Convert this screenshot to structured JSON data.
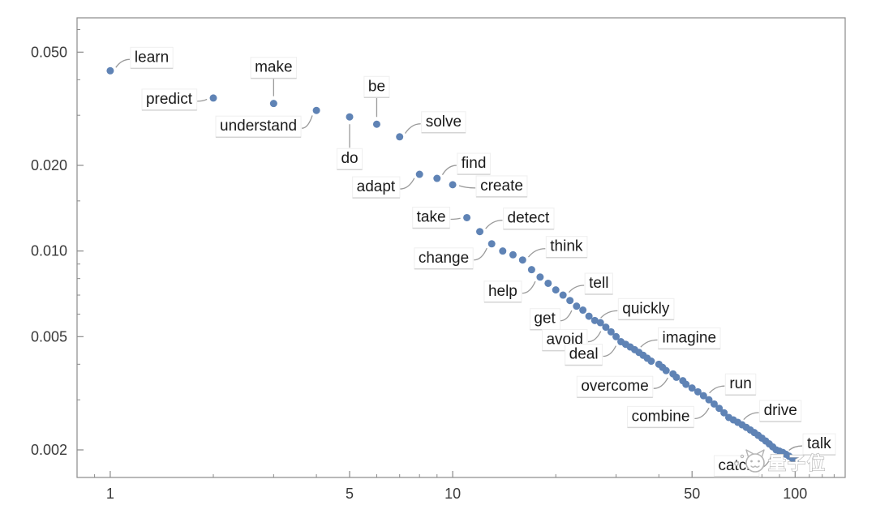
{
  "figure": {
    "background": "#ffffff",
    "frame_color": "#8a8a8a",
    "tick_color": "#8a8a8a",
    "tick_label_color": "#3a3a3a",
    "label_text_color": "#1a1a1a",
    "leader_color": "#9a9a9a",
    "label_underline_color": "#d4d4d4"
  },
  "watermark": {
    "text": "量子位",
    "icon": "cat-face-icon",
    "color": "#b5b5b5"
  },
  "chart_data": {
    "type": "scatter",
    "title": "",
    "xlabel": "",
    "ylabel": "",
    "x_scale": "log",
    "y_scale": "log",
    "xlim": [
      0.8,
      140
    ],
    "ylim": [
      0.0016,
      0.066
    ],
    "x_ticks": [
      1,
      5,
      10,
      50,
      100
    ],
    "x_tick_labels": [
      "1",
      "5",
      "10",
      "50",
      "100"
    ],
    "x_minor_ticks": [
      0.9,
      2,
      3,
      4,
      6,
      7,
      8,
      9,
      20,
      30,
      40,
      60,
      70,
      80,
      90,
      110,
      120,
      130
    ],
    "y_ticks": [
      0.05,
      0.02,
      0.01,
      0.005,
      0.002
    ],
    "y_tick_labels": [
      "0.050",
      "0.020",
      "0.010",
      "0.005",
      "0.002"
    ],
    "y_minor_ticks": [
      0.003,
      0.004,
      0.006,
      0.007,
      0.008,
      0.009,
      0.015,
      0.03,
      0.04,
      0.06
    ],
    "point_color": "#5f83b5",
    "point_radius": 4.5,
    "grid": false,
    "legend": false,
    "points": [
      [
        1,
        0.043,
        "learn"
      ],
      [
        2,
        0.0345,
        "predict"
      ],
      [
        3,
        0.033,
        "make"
      ],
      [
        4,
        0.0312,
        "understand"
      ],
      [
        5,
        0.0296,
        "do"
      ],
      [
        6,
        0.0279,
        "be"
      ],
      [
        7,
        0.0252,
        "solve"
      ],
      [
        8,
        0.0186,
        "adapt"
      ],
      [
        9,
        0.018,
        "find"
      ],
      [
        10,
        0.0171,
        "create"
      ],
      [
        11,
        0.0131,
        "take"
      ],
      [
        12,
        0.0117,
        "detect"
      ],
      [
        13,
        0.0106,
        "change"
      ],
      [
        14,
        0.01
      ],
      [
        15,
        0.0097
      ],
      [
        16,
        0.0093,
        "think"
      ],
      [
        17,
        0.0086
      ],
      [
        18,
        0.0081,
        "help"
      ],
      [
        19,
        0.0077
      ],
      [
        20,
        0.0073
      ],
      [
        21,
        0.007,
        "tell"
      ],
      [
        22,
        0.0067
      ],
      [
        23,
        0.0064,
        "get"
      ],
      [
        24,
        0.0062
      ],
      [
        25,
        0.0059
      ],
      [
        26,
        0.0057,
        "quickly"
      ],
      [
        27,
        0.0056
      ],
      [
        28,
        0.0054,
        "avoid"
      ],
      [
        29,
        0.0052
      ],
      [
        30,
        0.005
      ],
      [
        31,
        0.0048,
        "deal"
      ],
      [
        32,
        0.0047
      ],
      [
        33,
        0.0046
      ],
      [
        34,
        0.0045,
        "imagine"
      ],
      [
        35,
        0.0044
      ],
      [
        36,
        0.0043
      ],
      [
        37,
        0.0042
      ],
      [
        38,
        0.0041
      ],
      [
        40,
        0.004
      ],
      [
        41,
        0.0039
      ],
      [
        42,
        0.0038
      ],
      [
        44,
        0.0037,
        "overcome"
      ],
      [
        45,
        0.0036
      ],
      [
        47,
        0.0035
      ],
      [
        48,
        0.0034
      ],
      [
        50,
        0.0033
      ],
      [
        52,
        0.0032
      ],
      [
        54,
        0.0031,
        "run"
      ],
      [
        56,
        0.003
      ],
      [
        58,
        0.0029,
        "combine"
      ],
      [
        60,
        0.0028
      ],
      [
        62,
        0.0027
      ],
      [
        64,
        0.0026
      ],
      [
        66,
        0.00255
      ],
      [
        68,
        0.0025,
        "drive"
      ],
      [
        70,
        0.00245
      ],
      [
        72,
        0.0024
      ],
      [
        74,
        0.00235
      ],
      [
        76,
        0.0023
      ],
      [
        78,
        0.00225
      ],
      [
        80,
        0.0022
      ],
      [
        82,
        0.00215
      ],
      [
        84,
        0.0021
      ],
      [
        86,
        0.00205
      ],
      [
        88,
        0.002,
        "catch"
      ],
      [
        90,
        0.00198
      ],
      [
        92,
        0.00196,
        "talk"
      ],
      [
        94,
        0.00193
      ],
      [
        96,
        0.0019
      ],
      [
        98,
        0.00187
      ],
      [
        100,
        0.00184
      ]
    ],
    "label_layout": {
      "learn": {
        "dx": 30,
        "dy": -16,
        "anchor": "start",
        "leader": "curve"
      },
      "predict": {
        "dx": -26,
        "dy": 2,
        "anchor": "end",
        "leader": "curve"
      },
      "make": {
        "dx": 0,
        "dy": -44,
        "anchor": "middle",
        "leader": "line"
      },
      "understand": {
        "dx": -24,
        "dy": 20,
        "anchor": "end",
        "leader": "curve"
      },
      "do": {
        "dx": 0,
        "dy": 52,
        "anchor": "middle",
        "leader": "line"
      },
      "be": {
        "dx": 0,
        "dy": -46,
        "anchor": "middle",
        "leader": "line"
      },
      "solve": {
        "dx": 32,
        "dy": -18,
        "anchor": "start",
        "leader": "curve"
      },
      "adapt": {
        "dx": -30,
        "dy": 16,
        "anchor": "end",
        "leader": "curve"
      },
      "find": {
        "dx": 30,
        "dy": -18,
        "anchor": "start",
        "leader": "curve"
      },
      "create": {
        "dx": 34,
        "dy": 2,
        "anchor": "start",
        "leader": "curve"
      },
      "take": {
        "dx": -26,
        "dy": 0,
        "anchor": "end",
        "leader": "curve"
      },
      "detect": {
        "dx": 34,
        "dy": -16,
        "anchor": "start",
        "leader": "curve"
      },
      "change": {
        "dx": -28,
        "dy": 18,
        "anchor": "end",
        "leader": "curve"
      },
      "think": {
        "dx": 34,
        "dy": -16,
        "anchor": "start",
        "leader": "curve"
      },
      "help": {
        "dx": -28,
        "dy": 18,
        "anchor": "end",
        "leader": "curve"
      },
      "tell": {
        "dx": 32,
        "dy": -14,
        "anchor": "start",
        "leader": "curve"
      },
      "get": {
        "dx": -26,
        "dy": 16,
        "anchor": "end",
        "leader": "curve"
      },
      "quickly": {
        "dx": 34,
        "dy": -14,
        "anchor": "start",
        "leader": "curve"
      },
      "avoid": {
        "dx": -28,
        "dy": 16,
        "anchor": "end",
        "leader": "curve"
      },
      "deal": {
        "dx": -28,
        "dy": 16,
        "anchor": "end",
        "leader": "curve"
      },
      "imagine": {
        "dx": 34,
        "dy": -14,
        "anchor": "start",
        "leader": "curve"
      },
      "overcome": {
        "dx": -30,
        "dy": 16,
        "anchor": "end",
        "leader": "curve"
      },
      "run": {
        "dx": 32,
        "dy": -14,
        "anchor": "start",
        "leader": "curve"
      },
      "combine": {
        "dx": -30,
        "dy": 16,
        "anchor": "end",
        "leader": "curve"
      },
      "drive": {
        "dx": 32,
        "dy": -14,
        "anchor": "start",
        "leader": "curve"
      },
      "catch": {
        "dx": -26,
        "dy": 20,
        "anchor": "end",
        "leader": "curve"
      },
      "talk": {
        "dx": 30,
        "dy": -10,
        "anchor": "start",
        "leader": "curve"
      }
    }
  }
}
